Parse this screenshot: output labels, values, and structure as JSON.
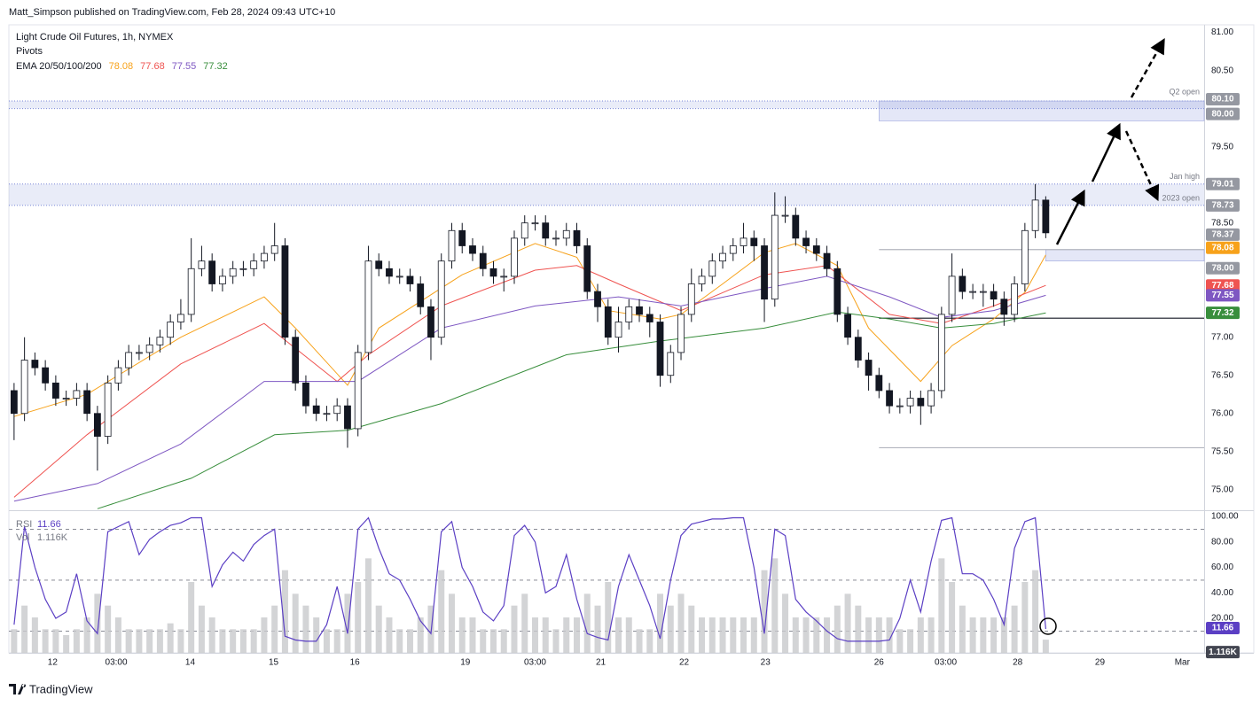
{
  "header": {
    "publisher": "Matt_Simpson published on TradingView.com, Feb 28, 2024 09:43 UTC+10"
  },
  "footer": {
    "brand": "TradingView"
  },
  "chart_data": [
    {
      "type": "candlestick",
      "title": "Light Crude Oil Futures, 1h, NYMEX",
      "subtitle": "Pivots",
      "indicator": "EMA 20/50/100/200",
      "xlim": [
        -0.5,
        114.2
      ],
      "xticks": [
        {
          "value": 3.7,
          "label": "12"
        },
        {
          "value": 9.8,
          "label": "03:00"
        },
        {
          "value": 16.9,
          "label": "14"
        },
        {
          "value": 24.9,
          "label": "15"
        },
        {
          "value": 32.7,
          "label": "16"
        },
        {
          "value": 43.3,
          "label": "19"
        },
        {
          "value": 50,
          "label": "03:00"
        },
        {
          "value": 56.3,
          "label": "21"
        },
        {
          "value": 64.3,
          "label": "22"
        },
        {
          "value": 72.1,
          "label": "23"
        },
        {
          "value": 83,
          "label": "26"
        },
        {
          "value": 89.4,
          "label": "03:00"
        },
        {
          "value": 96.3,
          "label": "28"
        },
        {
          "value": 104.2,
          "label": "29"
        },
        {
          "value": 112.1,
          "label": "Mar"
        }
      ],
      "ylim": [
        74.73,
        81.1
      ],
      "yticks": [
        {
          "value": 75,
          "label": "75.00"
        },
        {
          "value": 75.5,
          "label": "75.50"
        },
        {
          "value": 76,
          "label": "76.00"
        },
        {
          "value": 76.5,
          "label": "76.50"
        },
        {
          "value": 77,
          "label": "77.00"
        },
        {
          "value": 78.5,
          "label": "78.50"
        },
        {
          "value": 79.5,
          "label": "79.50"
        },
        {
          "value": 80.5,
          "label": "80.50"
        },
        {
          "value": 81,
          "label": "81.00"
        }
      ],
      "open": [
        76.3,
        76.0,
        76.7,
        76.6,
        76.4,
        76.2,
        76.2,
        76.3,
        76.0,
        75.7,
        76.4,
        76.6,
        76.8,
        76.8,
        76.9,
        77.0,
        77.2,
        77.3,
        77.9,
        78.0,
        77.7,
        77.8,
        77.9,
        77.9,
        78.0,
        78.1,
        78.2,
        77.0,
        76.4,
        76.1,
        76.0,
        76.0,
        76.1,
        75.8,
        76.8,
        78.0,
        77.9,
        77.8,
        77.8,
        77.7,
        77.4,
        77.0,
        78.0,
        78.4,
        78.2,
        78.1,
        77.9,
        77.8,
        77.8,
        78.3,
        78.5,
        78.5,
        78.3,
        78.3,
        78.4,
        78.2,
        77.6,
        77.4,
        77.0,
        77.2,
        77.4,
        77.3,
        77.2,
        76.5,
        76.8,
        77.3,
        77.7,
        77.8,
        78.0,
        78.1,
        78.2,
        78.3,
        78.2,
        77.5,
        78.6,
        78.6,
        78.3,
        78.2,
        78.1,
        77.9,
        77.3,
        77.0,
        76.7,
        76.5,
        76.3,
        76.1,
        76.1,
        76.2,
        76.1,
        76.3,
        77.3,
        77.8,
        77.6,
        77.6,
        77.6,
        77.5,
        77.3,
        77.7,
        78.4,
        78.8
      ],
      "high": [
        76.4,
        77.0,
        76.8,
        76.7,
        76.5,
        76.3,
        76.4,
        76.4,
        76.1,
        76.5,
        76.7,
        76.9,
        76.9,
        77.0,
        77.1,
        77.3,
        77.5,
        78.3,
        78.2,
        78.1,
        77.9,
        78.0,
        78.0,
        78.1,
        78.2,
        78.5,
        78.3,
        77.1,
        76.5,
        76.2,
        76.1,
        76.2,
        76.2,
        76.9,
        78.2,
        78.1,
        78.0,
        77.9,
        77.9,
        77.8,
        77.5,
        78.1,
        78.5,
        78.5,
        78.3,
        78.2,
        78.0,
        77.9,
        78.4,
        78.6,
        78.6,
        78.6,
        78.4,
        78.5,
        78.5,
        78.3,
        77.7,
        77.5,
        77.4,
        77.5,
        77.5,
        77.4,
        77.3,
        76.9,
        77.4,
        77.9,
        77.9,
        78.1,
        78.2,
        78.3,
        78.5,
        78.4,
        78.3,
        78.9,
        78.85,
        78.7,
        78.4,
        78.3,
        78.2,
        78.0,
        77.4,
        77.1,
        76.8,
        76.6,
        76.4,
        76.2,
        76.3,
        76.3,
        76.4,
        77.4,
        78.1,
        77.9,
        77.7,
        77.7,
        77.7,
        77.6,
        77.8,
        78.5,
        79.01,
        78.85
      ],
      "low": [
        75.65,
        75.9,
        76.5,
        76.3,
        76.1,
        76.1,
        76.1,
        75.9,
        75.25,
        75.6,
        76.3,
        76.5,
        76.7,
        76.7,
        76.8,
        76.9,
        77.1,
        77.2,
        77.8,
        77.6,
        77.6,
        77.7,
        77.8,
        77.8,
        77.9,
        78.0,
        76.9,
        76.3,
        76.0,
        75.9,
        75.9,
        75.9,
        75.55,
        75.7,
        76.7,
        77.8,
        77.7,
        77.7,
        77.6,
        77.3,
        76.7,
        76.9,
        77.9,
        78.1,
        78.0,
        77.8,
        77.7,
        77.6,
        77.7,
        78.2,
        78.4,
        78.2,
        78.2,
        78.2,
        78.1,
        77.5,
        77.2,
        76.9,
        76.8,
        77.1,
        77.2,
        77.0,
        76.35,
        76.4,
        76.7,
        77.2,
        77.6,
        77.7,
        77.9,
        78.0,
        78.1,
        78.0,
        77.2,
        77.4,
        78.5,
        78.2,
        78.1,
        78.0,
        77.8,
        77.2,
        76.9,
        76.6,
        76.3,
        76.2,
        76.0,
        76.0,
        76.0,
        75.85,
        76.0,
        76.2,
        77.2,
        77.5,
        77.5,
        77.4,
        77.4,
        77.15,
        77.2,
        77.6,
        78.3,
        78.3
      ],
      "close": [
        76.0,
        76.7,
        76.6,
        76.4,
        76.2,
        76.2,
        76.3,
        76.0,
        75.7,
        76.4,
        76.6,
        76.8,
        76.8,
        76.9,
        77.0,
        77.2,
        77.3,
        77.9,
        78.0,
        77.7,
        77.8,
        77.9,
        77.9,
        78.0,
        78.1,
        78.2,
        77.0,
        76.4,
        76.1,
        76.0,
        76.0,
        76.1,
        75.8,
        76.8,
        78.0,
        77.9,
        77.8,
        77.8,
        77.7,
        77.4,
        77.0,
        78.0,
        78.4,
        78.2,
        78.1,
        77.9,
        77.8,
        77.8,
        78.3,
        78.5,
        78.5,
        78.3,
        78.3,
        78.4,
        78.2,
        77.6,
        77.4,
        77.0,
        77.2,
        77.4,
        77.3,
        77.2,
        76.5,
        76.8,
        77.3,
        77.7,
        77.8,
        78.0,
        78.1,
        78.2,
        78.3,
        78.2,
        77.5,
        78.6,
        78.6,
        78.3,
        78.2,
        78.1,
        77.9,
        77.3,
        77.0,
        76.7,
        76.5,
        76.3,
        76.1,
        76.1,
        76.2,
        76.1,
        76.3,
        77.3,
        77.8,
        77.6,
        77.6,
        77.6,
        77.5,
        77.3,
        77.7,
        78.4,
        78.8,
        78.37
      ],
      "up_color": "#ffffff",
      "down_color": "#131722",
      "series": [
        {
          "color": "#f7a21b",
          "x": [
            0,
            7,
            16,
            24,
            27,
            32,
            35,
            39,
            43,
            50,
            54,
            57,
            62,
            64,
            68,
            72,
            75,
            79,
            82,
            87,
            90,
            94,
            97,
            99
          ],
          "values": [
            75.96,
            76.25,
            77.0,
            77.53,
            77.12,
            76.37,
            77.12,
            77.47,
            77.82,
            78.23,
            78.05,
            77.35,
            77.24,
            77.3,
            77.7,
            78.11,
            78.23,
            77.94,
            77.12,
            76.42,
            76.89,
            77.24,
            77.59,
            78.08
          ]
        },
        {
          "color": "#ef5350",
          "x": [
            0,
            7,
            16,
            24,
            31,
            34,
            41,
            50,
            54,
            58,
            64,
            72,
            78,
            84,
            89,
            94,
            99
          ],
          "values": [
            74.9,
            75.72,
            76.65,
            77.18,
            76.42,
            76.77,
            77.41,
            77.88,
            77.94,
            77.7,
            77.35,
            77.82,
            77.94,
            77.3,
            77.18,
            77.41,
            77.68
          ]
        },
        {
          "color": "#7e57c2",
          "x": [
            0,
            8,
            16,
            24,
            33,
            41,
            50,
            58,
            64,
            72,
            78,
            84,
            89,
            94,
            99
          ],
          "values": [
            74.85,
            75.08,
            75.6,
            76.42,
            76.42,
            77.12,
            77.41,
            77.53,
            77.41,
            77.64,
            77.8,
            77.53,
            77.26,
            77.35,
            77.55
          ]
        },
        {
          "color": "#388e3c",
          "x": [
            8,
            17,
            25,
            32,
            41,
            53,
            62,
            72,
            79,
            84,
            89,
            94,
            99
          ],
          "values": [
            74.75,
            75.15,
            75.72,
            75.78,
            76.13,
            76.77,
            76.95,
            77.12,
            77.33,
            77.24,
            77.12,
            77.18,
            77.32
          ]
        }
      ],
      "levels": [
        {
          "value": 80.1,
          "label": "80.10",
          "text": "Q2 open"
        },
        {
          "value": 80.0,
          "label": "80.00"
        },
        {
          "value": 79.01,
          "label": "79.01",
          "text": "Jan high"
        },
        {
          "value": 78.73,
          "label": "78.73",
          "text": "2023 open"
        },
        {
          "value": 78.0,
          "label": "78.00"
        }
      ],
      "boxes": [
        {
          "x0": 83,
          "y0": 79.84,
          "y1": 80.1
        },
        {
          "x0": 99,
          "y0": 78.0,
          "y1": 78.15
        }
      ],
      "pivots": [
        {
          "x0": 83,
          "value": 78.15,
          "color": "#b2b5be"
        },
        {
          "x0": 83,
          "value": 77.25,
          "color": "#131722"
        },
        {
          "x0": 83,
          "value": 75.55,
          "color": "#b2b5be"
        }
      ]
    },
    {
      "type": "line",
      "name": "RSI",
      "color": "#5b3fc4",
      "values": [
        15,
        92,
        60,
        35,
        20,
        25,
        55,
        18,
        8,
        88,
        92,
        96,
        70,
        82,
        88,
        93,
        95,
        99,
        99,
        45,
        62,
        72,
        65,
        78,
        85,
        90,
        6,
        3,
        2,
        2,
        15,
        45,
        8,
        90,
        99,
        75,
        55,
        50,
        35,
        18,
        8,
        88,
        96,
        60,
        45,
        25,
        18,
        30,
        85,
        93,
        80,
        40,
        45,
        70,
        35,
        8,
        5,
        3,
        45,
        70,
        50,
        30,
        4,
        50,
        85,
        94,
        96,
        98,
        98,
        99,
        99,
        60,
        8,
        90,
        85,
        35,
        25,
        18,
        10,
        4,
        2,
        2,
        2,
        2,
        3,
        20,
        50,
        25,
        65,
        97,
        99,
        55,
        55,
        50,
        35,
        15,
        75,
        96,
        99,
        11.66
      ],
      "ylim": [
        -7.1,
        104.2
      ],
      "yticks": [
        {
          "value": 20,
          "label": "20.00"
        },
        {
          "value": 40,
          "label": "40.00"
        },
        {
          "value": 60,
          "label": "60.00"
        },
        {
          "value": 80,
          "label": "80.00"
        },
        {
          "value": 100,
          "label": "100.00"
        }
      ],
      "levels": [
        90,
        50,
        10
      ]
    },
    {
      "type": "bar",
      "name": "Vol",
      "color": "#c8c9cc",
      "values": [
        2,
        4,
        3,
        2,
        2,
        1.5,
        2,
        3,
        5,
        4,
        3,
        2,
        2,
        2,
        2,
        2.5,
        2,
        6,
        4,
        3,
        2,
        2,
        2,
        2,
        3,
        4,
        7,
        5,
        4,
        3,
        2,
        2,
        5,
        6,
        8,
        4,
        3,
        2,
        2,
        3,
        4,
        7,
        5,
        3,
        3,
        2,
        2,
        2,
        4,
        5,
        3,
        3,
        2,
        3,
        3,
        5,
        4,
        6,
        3,
        3,
        2,
        2,
        5,
        4,
        5,
        4,
        3,
        3,
        3,
        3,
        3,
        3,
        7,
        8,
        5,
        3,
        3,
        3,
        3,
        4,
        5,
        4,
        3,
        3,
        3,
        2,
        2,
        3,
        3,
        8,
        6,
        4,
        3,
        3,
        3,
        3,
        4,
        6,
        7,
        1.116
      ],
      "value_labels_last": "1.116K",
      "ylim": [
        0,
        12
      ]
    }
  ]
}
